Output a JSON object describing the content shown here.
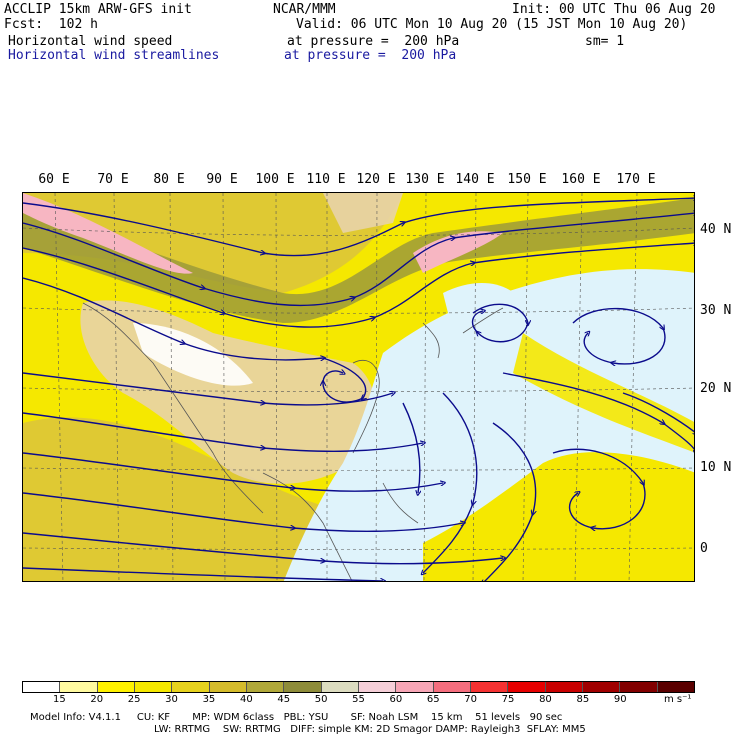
{
  "header": {
    "model_title": "ACCLIP 15km ARW-GFS init",
    "forecast": "Fcst:  102 h",
    "org": "NCAR/MMM",
    "init": "Init: 00 UTC Thu 06 Aug 20",
    "valid": "Valid: 06 UTC Mon 10 Aug 20 (15 JST Mon 10 Aug 20)",
    "field1_name": "Horizontal wind speed",
    "field1_level": "at pressure =  200 hPa",
    "smoothing": "sm= 1",
    "field2_name": "Horizontal wind streamlines",
    "field2_level": "at pressure =  200 hPa"
  },
  "map": {
    "lon_labels": [
      "60 E",
      "70 E",
      "80 E",
      "90 E",
      "100 E",
      "110 E",
      "120 E",
      "130 E",
      "140 E",
      "150 E",
      "160 E",
      "170 E"
    ],
    "lat_labels": [
      "40 N",
      "30 N",
      "20 N",
      "10 N",
      "0"
    ],
    "colors": {
      "land_tan": "#e8d3a8",
      "ocean": "#dff3fb",
      "yellow": "#f5e800",
      "ochre": "#d9c040",
      "olive": "#9c9a3a",
      "pink": "#f7b6c2",
      "streamline": "#0b0b8c"
    }
  },
  "colorbar": {
    "labels": [
      "15",
      "20",
      "25",
      "30",
      "35",
      "40",
      "45",
      "50",
      "55",
      "60",
      "65",
      "70",
      "75",
      "80",
      "85",
      "90"
    ],
    "colors": [
      "#ffffff",
      "#fffaa0",
      "#fff200",
      "#f5e800",
      "#e6d21e",
      "#d4bb2c",
      "#b0a83a",
      "#8e8c3a",
      "#dcdcc0",
      "#f5cfd8",
      "#f7a6b6",
      "#f56e7e",
      "#f53232",
      "#e60000",
      "#c80000",
      "#a00000",
      "#820000",
      "#5a0000"
    ],
    "unit": "m s⁻¹"
  },
  "footer": {
    "line1": "Model Info: V4.1.1     CU: KF       MP: WDM 6class   PBL: YSU       SF: Noah LSM    15 km    51 levels   90 sec",
    "line2": "LW: RRTMG    SW: RRTMG   DIFF: simple KM: 2D Smagor DAMP: Rayleigh3  SFLAY: MM5"
  }
}
